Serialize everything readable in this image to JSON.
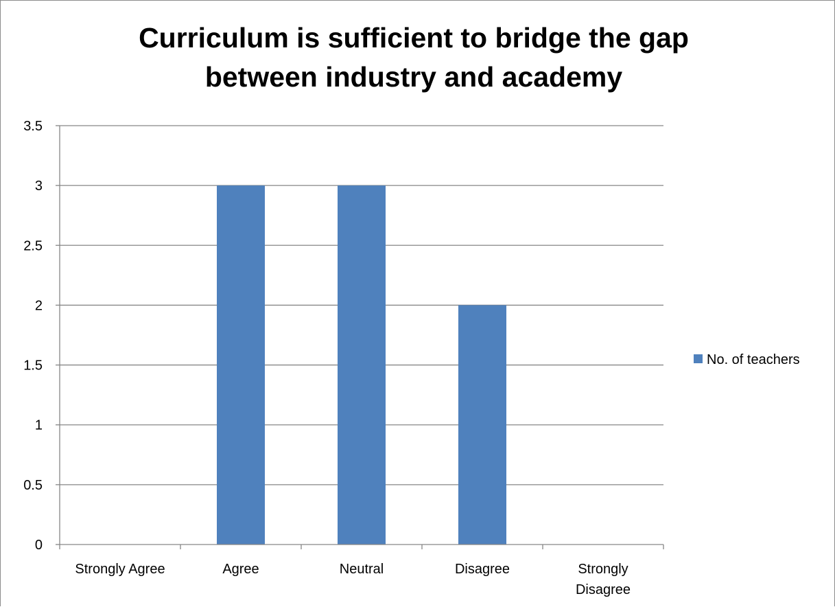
{
  "chart_data": {
    "type": "bar",
    "title": [
      "Curriculum is sufficient to bridge the gap",
      "between industry and academy"
    ],
    "categories": [
      "Strongly Agree",
      "Agree",
      "Neutral",
      "Disagree",
      "Strongly Disagree"
    ],
    "category_label_lines": [
      [
        "Strongly Agree"
      ],
      [
        "Agree"
      ],
      [
        "Neutral"
      ],
      [
        "Disagree"
      ],
      [
        "Strongly",
        "Disagree"
      ]
    ],
    "series": [
      {
        "name": "No. of teachers",
        "values": [
          0,
          3,
          3,
          2,
          0
        ],
        "color": "#4f81bd"
      }
    ],
    "y_ticks": [
      "0",
      "0.5",
      "1",
      "1.5",
      "2",
      "2.5",
      "3",
      "3.5"
    ],
    "ylim": [
      0,
      3.5
    ],
    "xlabel": "",
    "ylabel": "",
    "grid": true,
    "legend_position": "right",
    "colors": {
      "bar": "#4f81bd",
      "grid": "#868686",
      "axis": "#868686"
    }
  }
}
